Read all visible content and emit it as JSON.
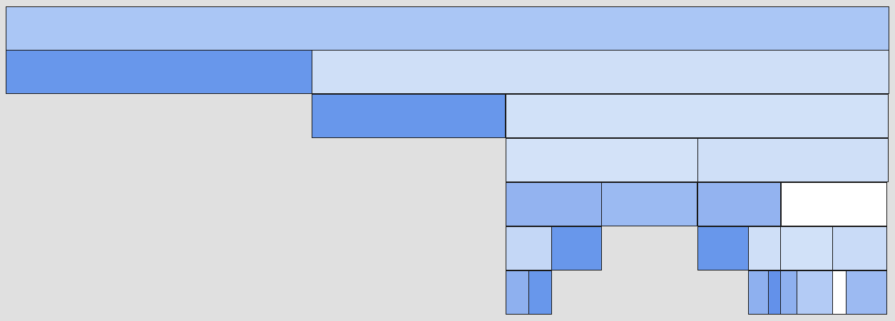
{
  "diagram": {
    "type": "icicle",
    "levels": 7,
    "fill_palette": [
      "#aac6f5",
      "#6897eb",
      "#cfdff7",
      "#93b3f0",
      "#9bbaf2",
      "#c4d7f6",
      "#ffffff"
    ],
    "nodes": [
      {
        "level": 0,
        "share": 1.0,
        "fill": "#aac6f5"
      },
      {
        "level": 1,
        "share": 0.346,
        "fill": "#6897eb"
      },
      {
        "level": 1,
        "share": 0.654,
        "fill": "#cfdff7"
      },
      {
        "level": 2,
        "share": 0.219,
        "fill": "#6897eb"
      },
      {
        "level": 2,
        "share": 0.433,
        "fill": "#d1e1f8"
      },
      {
        "level": 3,
        "share": 0.217,
        "fill": "#d3e2f8"
      },
      {
        "level": 3,
        "share": 0.216,
        "fill": "#cfdff7"
      },
      {
        "level": 4,
        "share": 0.108,
        "fill": "#93b3f0"
      },
      {
        "level": 4,
        "share": 0.108,
        "fill": "#9bbaf2"
      },
      {
        "level": 4,
        "share": 0.094,
        "fill": "#93b3f0"
      },
      {
        "level": 4,
        "share": 0.122,
        "fill": "#ffffff"
      },
      {
        "level": 5,
        "share": 0.052,
        "fill": "#c4d7f6"
      },
      {
        "level": 5,
        "share": 0.056,
        "fill": "#6897eb"
      },
      {
        "level": 5,
        "share": 0.058,
        "fill": "#6897eb"
      },
      {
        "level": 5,
        "share": 0.036,
        "fill": "#cfdff7"
      },
      {
        "level": 5,
        "share": 0.059,
        "fill": "#d1e1f8"
      },
      {
        "level": 5,
        "share": 0.062,
        "fill": "#c9dbf7"
      },
      {
        "level": 6,
        "share": 0.026,
        "fill": "#8eb0ef"
      },
      {
        "level": 6,
        "share": 0.026,
        "fill": "#6897eb"
      },
      {
        "level": 6,
        "share": 0.023,
        "fill": "#8eb0ef"
      },
      {
        "level": 6,
        "share": 0.014,
        "fill": "#6391ea"
      },
      {
        "level": 6,
        "share": 0.018,
        "fill": "#8eb0ef"
      },
      {
        "level": 6,
        "share": 0.04,
        "fill": "#b3cbf5"
      },
      {
        "level": 6,
        "share": 0.016,
        "fill": "#ffffff"
      },
      {
        "level": 6,
        "share": 0.046,
        "fill": "#9cbaf2"
      }
    ]
  }
}
